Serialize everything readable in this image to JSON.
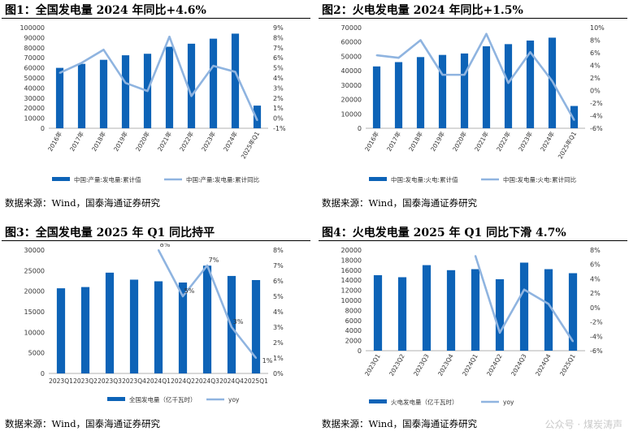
{
  "figures": [
    {
      "title": "图1：全国发电量 2024 年同比+4.6%",
      "source": "数据来源：Wind，国泰海通证券研究",
      "chart_data": {
        "type": "bar",
        "categories": [
          "2016年",
          "2017年",
          "2018年",
          "2019年",
          "2020年",
          "2021年",
          "2022年",
          "2023年",
          "2024年",
          "2025年Q1"
        ],
        "series": [
          {
            "name": "中国:产量:发电量:累计值",
            "type": "bar",
            "axis": "left",
            "values": [
              60000,
              64000,
              68000,
              72500,
              74000,
              81000,
              84000,
              89000,
              94000,
              22500
            ]
          },
          {
            "name": "中国:产量:发电量:累计同比",
            "type": "line",
            "axis": "right",
            "values": [
              4.5,
              5.5,
              6.8,
              3.5,
              2.7,
              8.1,
              2.2,
              5.2,
              4.6,
              -0.2
            ]
          }
        ],
        "ylim": [
          0,
          100000
        ],
        "yticks": [
          0,
          10000,
          20000,
          30000,
          40000,
          50000,
          60000,
          70000,
          80000,
          90000,
          100000
        ],
        "y2lim": [
          -1,
          9
        ],
        "y2ticks": [
          "-1%",
          "0%",
          "1%",
          "2%",
          "3%",
          "4%",
          "5%",
          "6%",
          "7%",
          "8%",
          "9%"
        ],
        "bar_color": "#0d63b7",
        "line_color": "#8fb4e0",
        "legend": "bottom",
        "point_labels": []
      }
    },
    {
      "title": "图2：火电发电量 2024 年同比+1.5%",
      "source": "数据来源：Wind，国泰海通证券研究",
      "chart_data": {
        "type": "bar",
        "categories": [
          "2016年",
          "2017年",
          "2018年",
          "2019年",
          "2020年",
          "2021年",
          "2022年",
          "2023年",
          "2024年",
          "2025年Q1"
        ],
        "series": [
          {
            "name": "中国:发电量:火电:累计值",
            "type": "bar",
            "axis": "left",
            "values": [
              43000,
              46000,
              49500,
              51000,
              52000,
              57000,
              58500,
              61000,
              63000,
              15500
            ]
          },
          {
            "name": "中国:发电量:火电:累计同比",
            "type": "line",
            "axis": "right",
            "values": [
              5.6,
              5.2,
              8.0,
              2.5,
              2.5,
              9.0,
              1.2,
              6.1,
              1.5,
              -4.7
            ]
          }
        ],
        "ylim": [
          0,
          70000
        ],
        "yticks": [
          0,
          10000,
          20000,
          30000,
          40000,
          50000,
          60000,
          70000
        ],
        "y2lim": [
          -6,
          10
        ],
        "y2ticks": [
          "-6%",
          "-4%",
          "-2%",
          "0%",
          "2%",
          "4%",
          "6%",
          "8%",
          "10%"
        ],
        "bar_color": "#0d63b7",
        "line_color": "#8fb4e0",
        "legend": "bottom",
        "point_labels": []
      }
    },
    {
      "title": "图3：全国发电量 2025 年 Q1 同比持平",
      "source": "数据来源：Wind，国泰海通证券研究",
      "chart_data": {
        "type": "bar",
        "categories": [
          "2023Q1",
          "2023Q2",
          "2023Q3",
          "2023Q4",
          "2024Q1",
          "2024Q2",
          "2024Q3",
          "2024Q4",
          "2025Q1"
        ],
        "series": [
          {
            "name": "全国发电量（亿千瓦时）",
            "type": "bar",
            "axis": "left",
            "values": [
              20700,
              21000,
              24500,
              22800,
              22400,
              22100,
              26200,
              23700,
              22700
            ]
          },
          {
            "name": "yoy",
            "type": "line",
            "axis": "right",
            "values": [
              null,
              null,
              null,
              null,
              8,
              5,
              7,
              3,
              1
            ]
          }
        ],
        "ylim": [
          0,
          30000
        ],
        "yticks": [
          0,
          5000,
          10000,
          15000,
          20000,
          25000,
          30000
        ],
        "y2lim": [
          0,
          8
        ],
        "y2ticks": [
          "0%",
          "1%",
          "2%",
          "3%",
          "4%",
          "5%",
          "6%",
          "7%",
          "8%"
        ],
        "bar_color": "#0d63b7",
        "line_color": "#8fb4e0",
        "legend": "bottom",
        "point_labels": [
          "",
          "",
          "",
          "",
          "8%",
          "5%",
          "7%",
          "3%",
          "1%"
        ]
      }
    },
    {
      "title": "图4：火电发电量 2025 年 Q1 同比下滑 4.7%",
      "source": "数据来源：Wind，国泰海通证券研究",
      "chart_data": {
        "type": "bar",
        "categories": [
          "2023Q1",
          "2023Q2",
          "2023Q3",
          "2023Q4",
          "2024Q1",
          "2024Q2",
          "2024Q3",
          "2024Q4",
          "2025Q1"
        ],
        "series": [
          {
            "name": "火电发电量（亿千瓦时）",
            "type": "bar",
            "axis": "left",
            "values": [
              15000,
              14600,
              17000,
              16000,
              16200,
              14200,
              17500,
              16200,
              15400
            ]
          },
          {
            "name": "yoy",
            "type": "line",
            "axis": "right",
            "values": [
              null,
              null,
              null,
              null,
              7.2,
              -3.5,
              2.5,
              0.5,
              -4.7
            ]
          }
        ],
        "ylim": [
          0,
          20000
        ],
        "yticks": [
          0,
          2000,
          4000,
          6000,
          8000,
          10000,
          12000,
          14000,
          16000,
          18000,
          20000
        ],
        "y2lim": [
          -6,
          8
        ],
        "y2ticks": [
          "-6%",
          "-4%",
          "-2%",
          "0%",
          "2%",
          "4%",
          "6%",
          "8%"
        ],
        "bar_color": "#0d63b7",
        "line_color": "#8fb4e0",
        "legend": "bottom",
        "point_labels": []
      }
    }
  ],
  "watermark": "公众号 · 煤炭涛声"
}
